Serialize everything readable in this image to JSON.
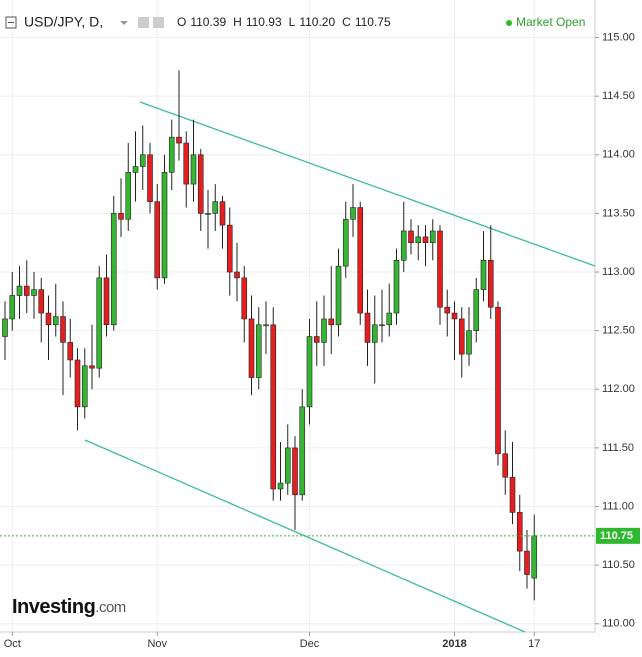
{
  "chart_data": {
    "type": "candlestick",
    "title": "USD/JPY, D,",
    "header": [
      {
        "key": "O",
        "text": "110.39"
      },
      {
        "key": "H",
        "text": "110.93"
      },
      {
        "key": "L",
        "text": "110.20"
      },
      {
        "key": "C",
        "text": "110.75"
      }
    ],
    "status": "Market Open",
    "brand": "Investing",
    "brand_suffix": ".com",
    "categories": [
      null,
      "Oct",
      null,
      null,
      null,
      null,
      null,
      null,
      null,
      null,
      null,
      null,
      null,
      null,
      null,
      null,
      null,
      null,
      null,
      null,
      null,
      "Nov",
      null,
      null,
      null,
      null,
      null,
      null,
      null,
      null,
      null,
      null,
      null,
      null,
      null,
      null,
      null,
      null,
      null,
      null,
      null,
      null,
      "Dec",
      null,
      null,
      null,
      null,
      null,
      null,
      null,
      null,
      null,
      null,
      null,
      null,
      null,
      null,
      null,
      null,
      null,
      null,
      null,
      "2018",
      null,
      null,
      null,
      null,
      null,
      null,
      null,
      null,
      null,
      null,
      "17"
    ],
    "open": [
      112.45,
      112.6,
      112.8,
      112.88,
      112.8,
      112.85,
      112.65,
      112.55,
      112.62,
      112.4,
      112.25,
      111.85,
      112.2,
      112.18,
      112.95,
      112.55,
      113.5,
      113.45,
      113.85,
      113.9,
      114.0,
      113.6,
      112.95,
      113.85,
      114.15,
      114.1,
      113.75,
      114.0,
      113.5,
      113.5,
      113.6,
      113.4,
      113.0,
      112.95,
      112.6,
      112.1,
      112.55,
      112.55,
      111.15,
      111.2,
      111.5,
      111.1,
      111.85,
      112.45,
      112.4,
      112.6,
      112.55,
      113.05,
      113.45,
      113.55,
      112.65,
      112.4,
      112.55,
      112.55,
      112.65,
      113.1,
      113.35,
      113.25,
      113.3,
      113.25,
      113.35,
      112.7,
      112.65,
      112.6,
      112.3,
      112.5,
      112.85,
      113.1,
      112.7,
      111.45,
      111.25,
      110.95,
      110.62,
      110.39
    ],
    "high": [
      112.75,
      113.0,
      113.05,
      113.1,
      113.0,
      112.95,
      112.8,
      112.9,
      112.75,
      112.6,
      112.35,
      112.35,
      112.55,
      113.05,
      113.15,
      113.65,
      113.8,
      114.1,
      114.2,
      114.25,
      114.1,
      113.75,
      114.0,
      114.3,
      114.72,
      114.2,
      114.3,
      114.05,
      113.7,
      113.75,
      113.65,
      113.55,
      113.25,
      113.05,
      112.8,
      112.7,
      112.75,
      112.7,
      111.55,
      111.7,
      111.6,
      112.0,
      112.6,
      112.75,
      112.8,
      113.05,
      113.2,
      113.6,
      113.75,
      113.6,
      112.85,
      112.8,
      112.85,
      112.9,
      113.2,
      113.6,
      113.45,
      113.4,
      113.4,
      113.45,
      113.4,
      112.85,
      112.75,
      112.7,
      112.7,
      112.95,
      113.35,
      113.4,
      112.75,
      111.65,
      111.55,
      111.1,
      110.8,
      110.93
    ],
    "low": [
      112.25,
      112.5,
      112.6,
      112.65,
      112.6,
      112.4,
      112.25,
      112.45,
      111.95,
      112.1,
      111.65,
      111.75,
      112.0,
      112.1,
      112.45,
      112.5,
      113.3,
      113.35,
      113.6,
      113.7,
      113.5,
      112.85,
      112.9,
      113.7,
      113.95,
      113.55,
      113.6,
      113.35,
      113.2,
      113.35,
      113.2,
      112.8,
      112.75,
      112.4,
      111.95,
      112.0,
      112.3,
      111.05,
      111.05,
      111.1,
      110.8,
      111.05,
      111.7,
      112.2,
      112.2,
      112.3,
      112.45,
      112.95,
      113.3,
      112.55,
      112.2,
      112.05,
      112.4,
      112.45,
      112.55,
      113.0,
      113.15,
      113.1,
      113.05,
      113.1,
      112.55,
      112.45,
      112.25,
      112.1,
      112.2,
      112.4,
      112.75,
      112.6,
      111.35,
      111.1,
      110.85,
      110.45,
      110.3,
      110.2
    ],
    "close": [
      112.6,
      112.8,
      112.88,
      112.8,
      112.85,
      112.65,
      112.55,
      112.62,
      112.4,
      112.25,
      111.85,
      112.2,
      112.18,
      112.95,
      112.55,
      113.5,
      113.45,
      113.85,
      113.9,
      114.0,
      113.6,
      112.95,
      113.85,
      114.15,
      114.1,
      113.75,
      114.0,
      113.5,
      113.5,
      113.6,
      113.4,
      113.0,
      112.95,
      112.6,
      112.1,
      112.55,
      112.55,
      111.15,
      111.2,
      111.5,
      111.1,
      111.85,
      112.45,
      112.4,
      112.6,
      112.55,
      113.05,
      113.45,
      113.55,
      112.65,
      112.4,
      112.55,
      112.55,
      112.65,
      113.1,
      113.35,
      113.25,
      113.3,
      113.25,
      113.35,
      112.7,
      112.65,
      112.6,
      112.3,
      112.5,
      112.85,
      113.1,
      112.7,
      111.45,
      111.25,
      110.95,
      110.62,
      110.42,
      110.75
    ],
    "up_color": "#35b533",
    "down_color": "#e3201f",
    "current_price": {
      "value": 110.75,
      "label": "110.75"
    },
    "current_color": "#2eb82e",
    "ylim": [
      109.93,
      115.32
    ],
    "yticks": [
      {
        "value": 110,
        "label": "110.00"
      },
      {
        "value": 110.5,
        "label": "110.50"
      },
      {
        "value": 111,
        "label": "111.00"
      },
      {
        "value": 111.5,
        "label": "111.50"
      },
      {
        "value": 112,
        "label": "112.00"
      },
      {
        "value": 112.5,
        "label": "112.50"
      },
      {
        "value": 113,
        "label": "113.00"
      },
      {
        "value": 113.5,
        "label": "113.50"
      },
      {
        "value": 114,
        "label": "114.00"
      },
      {
        "value": 114.5,
        "label": "114.50"
      },
      {
        "value": 115,
        "label": "115.00"
      }
    ],
    "grid": true
  }
}
